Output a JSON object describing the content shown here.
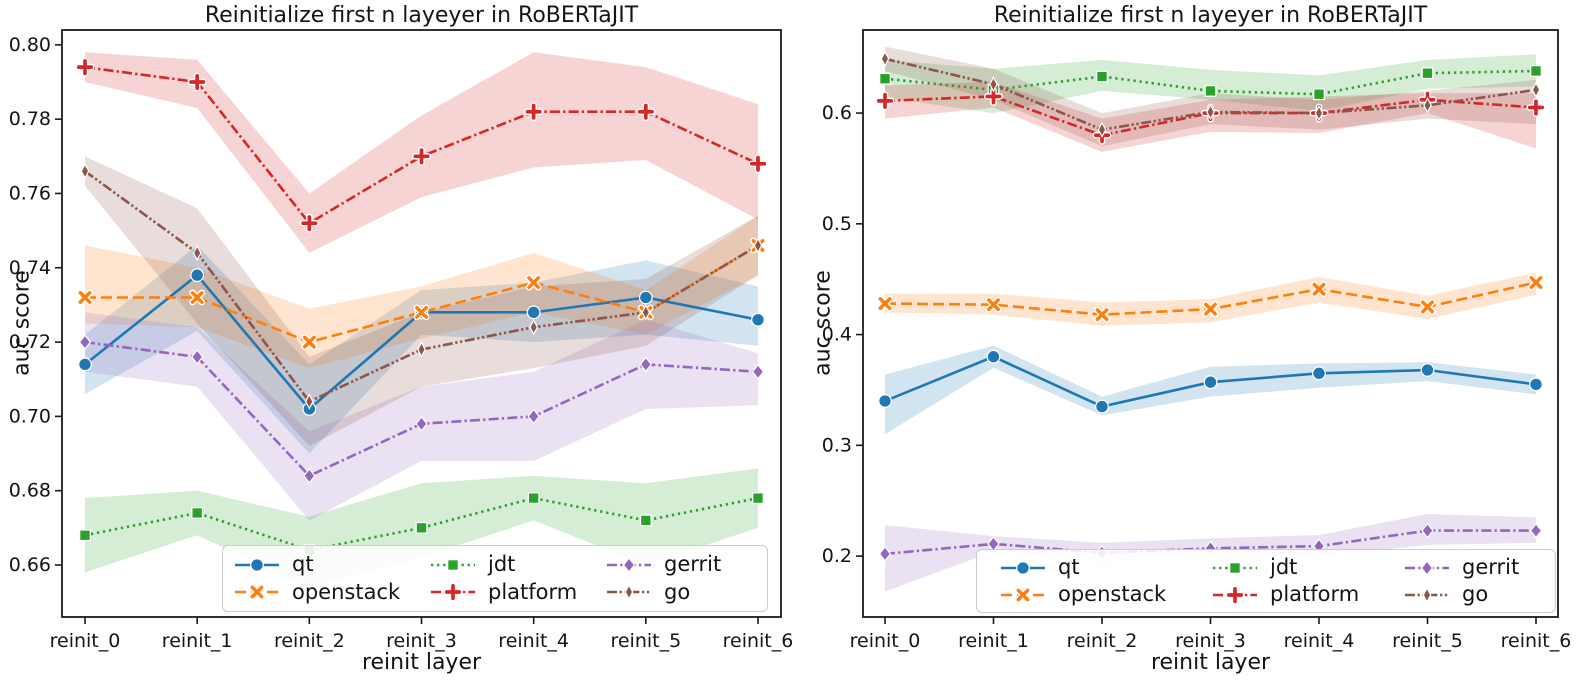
{
  "figure": {
    "background": "#ffffff",
    "text_color": "#141414",
    "spine_color": "#1a1a1a"
  },
  "chart_data": [
    {
      "type": "line",
      "title": "Reinitialize first n layeyer in RoBERTaJIT",
      "xlabel": "reinit layer",
      "ylabel": "auc score",
      "categories": [
        "reinit_0",
        "reinit_1",
        "reinit_2",
        "reinit_3",
        "reinit_4",
        "reinit_5",
        "reinit_6"
      ],
      "ylim": [
        0.646,
        0.804
      ],
      "yticks": {
        "values": [
          0.66,
          0.68,
          0.7,
          0.72,
          0.74,
          0.76,
          0.78,
          0.8
        ],
        "labels": [
          "0.66",
          "0.68",
          "0.70",
          "0.72",
          "0.74",
          "0.76",
          "0.78",
          "0.80"
        ]
      },
      "grid": false,
      "legend_position": "lower center, 3 columns",
      "legend_display_order": [
        0,
        2,
        4,
        1,
        3,
        5
      ],
      "series": [
        {
          "name": "qt",
          "color": "#1f77b4",
          "linestyle": "solid",
          "marker": "circle",
          "values": [
            0.714,
            0.738,
            0.702,
            0.728,
            0.728,
            0.732,
            0.726
          ],
          "lower": [
            0.706,
            0.723,
            0.69,
            0.722,
            0.72,
            0.722,
            0.719
          ],
          "upper": [
            0.722,
            0.746,
            0.714,
            0.734,
            0.736,
            0.742,
            0.735
          ]
        },
        {
          "name": "openstack",
          "color": "#ff7f0e",
          "linestyle": "dashed",
          "marker": "x",
          "values": [
            0.732,
            0.732,
            0.72,
            0.728,
            0.736,
            0.728,
            0.746
          ],
          "lower": [
            0.725,
            0.724,
            0.713,
            0.721,
            0.728,
            0.722,
            0.738
          ],
          "upper": [
            0.746,
            0.74,
            0.729,
            0.735,
            0.744,
            0.734,
            0.754
          ]
        },
        {
          "name": "jdt",
          "color": "#2ca02c",
          "linestyle": "dotted",
          "marker": "square",
          "values": [
            0.668,
            0.674,
            0.664,
            0.67,
            0.678,
            0.672,
            0.678
          ],
          "lower": [
            0.658,
            0.668,
            0.654,
            0.662,
            0.672,
            0.66,
            0.67
          ],
          "upper": [
            0.678,
            0.68,
            0.673,
            0.682,
            0.684,
            0.682,
            0.686
          ]
        },
        {
          "name": "platform",
          "color": "#d62728",
          "linestyle": "dashdot",
          "marker": "plus",
          "values": [
            0.794,
            0.79,
            0.752,
            0.77,
            0.782,
            0.782,
            0.768
          ],
          "lower": [
            0.79,
            0.783,
            0.744,
            0.759,
            0.767,
            0.769,
            0.753
          ],
          "upper": [
            0.798,
            0.796,
            0.76,
            0.781,
            0.798,
            0.794,
            0.784
          ]
        },
        {
          "name": "gerrit",
          "color": "#9467bd",
          "linestyle": "dashdot",
          "marker": "diamond",
          "values": [
            0.72,
            0.716,
            0.684,
            0.698,
            0.7,
            0.714,
            0.712
          ],
          "lower": [
            0.712,
            0.708,
            0.672,
            0.688,
            0.688,
            0.702,
            0.703
          ],
          "upper": [
            0.728,
            0.724,
            0.696,
            0.708,
            0.712,
            0.726,
            0.717
          ]
        },
        {
          "name": "go",
          "color": "#8c564b",
          "linestyle": "dashdotdot",
          "marker": "thin-diamond",
          "values": [
            0.766,
            0.744,
            0.704,
            0.718,
            0.724,
            0.728,
            0.746
          ],
          "lower": [
            0.762,
            0.725,
            0.692,
            0.708,
            0.713,
            0.719,
            0.738
          ],
          "upper": [
            0.77,
            0.756,
            0.716,
            0.728,
            0.735,
            0.737,
            0.754
          ]
        }
      ]
    },
    {
      "type": "line",
      "title": "Reinitialize first n layeyer in RoBERTaJIT",
      "xlabel": "reinit layer",
      "ylabel": "auc score",
      "categories": [
        "reinit_0",
        "reinit_1",
        "reinit_2",
        "reinit_3",
        "reinit_4",
        "reinit_5",
        "reinit_6"
      ],
      "ylim": [
        0.145,
        0.675
      ],
      "yticks": {
        "values": [
          0.2,
          0.3,
          0.4,
          0.5,
          0.6
        ],
        "labels": [
          "0.2",
          "0.3",
          "0.4",
          "0.5",
          "0.6"
        ]
      },
      "grid": false,
      "legend_position": "lower center, 3 columns",
      "legend_display_order": [
        0,
        2,
        4,
        1,
        3,
        5
      ],
      "series": [
        {
          "name": "qt",
          "color": "#1f77b4",
          "linestyle": "solid",
          "marker": "circle",
          "values": [
            0.34,
            0.38,
            0.335,
            0.357,
            0.365,
            0.368,
            0.355
          ],
          "lower": [
            0.31,
            0.37,
            0.327,
            0.344,
            0.352,
            0.358,
            0.346
          ],
          "upper": [
            0.364,
            0.39,
            0.344,
            0.371,
            0.374,
            0.375,
            0.364
          ]
        },
        {
          "name": "openstack",
          "color": "#ff7f0e",
          "linestyle": "dashed",
          "marker": "x",
          "values": [
            0.428,
            0.427,
            0.418,
            0.423,
            0.441,
            0.425,
            0.447
          ],
          "lower": [
            0.42,
            0.418,
            0.408,
            0.411,
            0.429,
            0.414,
            0.436
          ],
          "upper": [
            0.437,
            0.437,
            0.429,
            0.432,
            0.452,
            0.435,
            0.456
          ]
        },
        {
          "name": "jdt",
          "color": "#2ca02c",
          "linestyle": "dotted",
          "marker": "square",
          "values": [
            0.631,
            0.621,
            0.633,
            0.62,
            0.617,
            0.636,
            0.638
          ],
          "lower": [
            0.614,
            0.6,
            0.62,
            0.612,
            0.602,
            0.622,
            0.624
          ],
          "upper": [
            0.648,
            0.64,
            0.648,
            0.639,
            0.634,
            0.648,
            0.653
          ]
        },
        {
          "name": "platform",
          "color": "#d62728",
          "linestyle": "dashdot",
          "marker": "plus",
          "values": [
            0.611,
            0.615,
            0.58,
            0.6,
            0.6,
            0.612,
            0.605
          ],
          "lower": [
            0.595,
            0.605,
            0.565,
            0.583,
            0.582,
            0.6,
            0.568
          ],
          "upper": [
            0.625,
            0.628,
            0.595,
            0.612,
            0.615,
            0.618,
            0.618
          ]
        },
        {
          "name": "gerrit",
          "color": "#9467bd",
          "linestyle": "dashdot",
          "marker": "diamond",
          "values": [
            0.202,
            0.211,
            0.203,
            0.207,
            0.209,
            0.223,
            0.223
          ],
          "lower": [
            0.168,
            0.204,
            0.194,
            0.198,
            0.2,
            0.21,
            0.212
          ],
          "upper": [
            0.228,
            0.218,
            0.212,
            0.216,
            0.219,
            0.238,
            0.235
          ]
        },
        {
          "name": "go",
          "color": "#8c564b",
          "linestyle": "dashdotdot",
          "marker": "thin-diamond",
          "values": [
            0.649,
            0.626,
            0.585,
            0.601,
            0.6,
            0.607,
            0.621
          ],
          "lower": [
            0.638,
            0.612,
            0.57,
            0.59,
            0.585,
            0.595,
            0.59
          ],
          "upper": [
            0.66,
            0.64,
            0.6,
            0.618,
            0.612,
            0.62,
            0.63
          ]
        }
      ]
    }
  ]
}
